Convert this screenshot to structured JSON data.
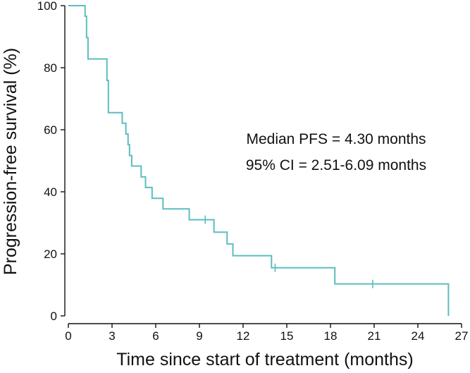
{
  "chart_data": {
    "type": "line",
    "title": "",
    "xlabel": "Time since start of treatment (months)",
    "ylabel": "Progression-free survival (%)",
    "xlim": [
      0,
      27
    ],
    "ylim": [
      0,
      100
    ],
    "x_ticks": [
      0,
      3,
      6,
      9,
      12,
      15,
      18,
      21,
      24,
      27
    ],
    "y_ticks": [
      0,
      20,
      40,
      60,
      80,
      100
    ],
    "grid": false,
    "step": "post",
    "line_color": "#5bbdbf",
    "series": [
      {
        "x": [
          0,
          1.15,
          1.25,
          1.35,
          2.65,
          2.75,
          3.7,
          3.95,
          4.1,
          4.2,
          4.35,
          5.0,
          5.3,
          5.75,
          6.5,
          8.3,
          10.0,
          10.9,
          11.3,
          13.95,
          18.3,
          26.1
        ],
        "y": [
          100,
          96.6,
          89.7,
          82.8,
          75.9,
          65.5,
          62.1,
          58.6,
          55.2,
          51.7,
          48.3,
          44.8,
          41.4,
          37.9,
          34.5,
          31.0,
          27.0,
          23.2,
          19.4,
          15.5,
          10.3,
          0
        ]
      }
    ],
    "censored": [
      {
        "x": 9.4,
        "y": 31.0
      },
      {
        "x": 14.2,
        "y": 15.5
      },
      {
        "x": 20.9,
        "y": 10.3
      }
    ],
    "annotations": [
      "Median PFS = 4.30 months",
      "95% CI = 2.51-6.09 months"
    ]
  }
}
